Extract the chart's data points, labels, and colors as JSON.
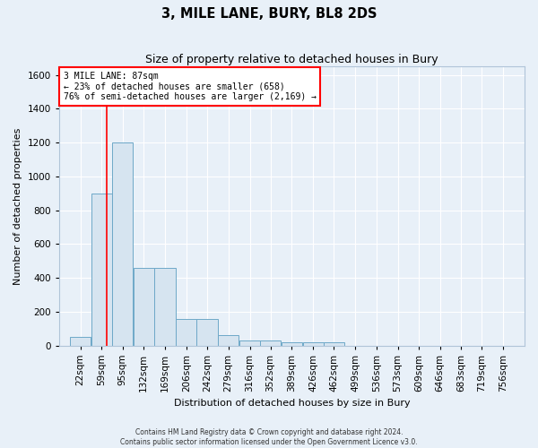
{
  "title": "3, MILE LANE, BURY, BL8 2DS",
  "subtitle": "Size of property relative to detached houses in Bury",
  "xlabel": "Distribution of detached houses by size in Bury",
  "ylabel": "Number of detached properties",
  "bar_facecolor": "#d6e4f0",
  "bar_edgecolor": "#6ea8c8",
  "bg_color": "#e8f0f8",
  "grid_color": "#c8d8e8",
  "fig_color": "#e8f0f8",
  "red_line_x": 87,
  "annotation_text": "3 MILE LANE: 87sqm\n← 23% of detached houses are smaller (658)\n76% of semi-detached houses are larger (2,169) →",
  "categories": [
    "22sqm",
    "59sqm",
    "95sqm",
    "132sqm",
    "169sqm",
    "206sqm",
    "242sqm",
    "279sqm",
    "316sqm",
    "352sqm",
    "389sqm",
    "426sqm",
    "462sqm",
    "499sqm",
    "536sqm",
    "573sqm",
    "609sqm",
    "646sqm",
    "683sqm",
    "719sqm",
    "756sqm"
  ],
  "bin_starts": [
    22,
    59,
    95,
    132,
    169,
    206,
    242,
    279,
    316,
    352,
    389,
    426,
    462,
    499,
    536,
    573,
    609,
    646,
    683,
    719,
    756
  ],
  "bin_width": 37,
  "values": [
    50,
    900,
    1200,
    460,
    460,
    155,
    155,
    60,
    30,
    30,
    20,
    20,
    20,
    0,
    0,
    0,
    0,
    0,
    0,
    0,
    0
  ],
  "ylim": [
    0,
    1650
  ],
  "yticks": [
    0,
    200,
    400,
    600,
    800,
    1000,
    1200,
    1400,
    1600
  ],
  "footer_line1": "Contains HM Land Registry data © Crown copyright and database right 2024.",
  "footer_line2": "Contains public sector information licensed under the Open Government Licence v3.0."
}
